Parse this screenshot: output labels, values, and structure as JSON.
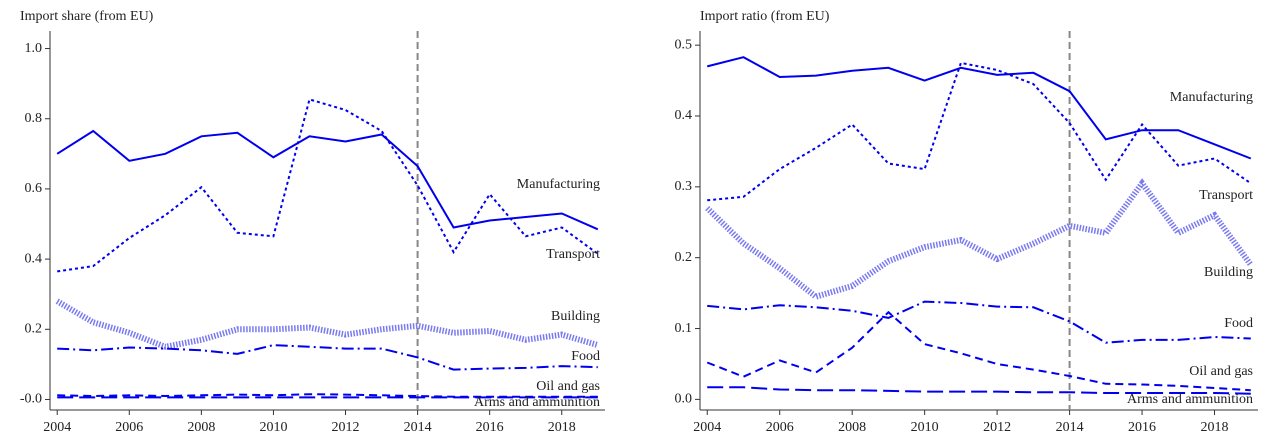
{
  "chart_data": [
    {
      "type": "line",
      "y_label": "Import share (from EU)",
      "x": [
        2004,
        2005,
        2006,
        2007,
        2008,
        2009,
        2010,
        2011,
        2012,
        2013,
        2014,
        2015,
        2016,
        2017,
        2018,
        2019
      ],
      "xlim": [
        2003.8,
        2019.2
      ],
      "xticks": [
        2004,
        2006,
        2008,
        2010,
        2012,
        2014,
        2016,
        2018
      ],
      "ylim": [
        -0.03,
        1.05
      ],
      "yticks": [
        {
          "value": 0,
          "label": "-0.0"
        },
        0.2,
        0.4,
        0.6,
        0.8,
        {
          "value": 1,
          "label": "1.0"
        }
      ],
      "vline": {
        "value": 2014,
        "color": "#888888"
      },
      "series": [
        {
          "name": "Manufacturing",
          "color": "#0000ee",
          "style": "solid",
          "width": 2,
          "values": [
            0.7,
            0.765,
            0.68,
            0.7,
            0.75,
            0.76,
            0.69,
            0.75,
            0.735,
            0.755,
            0.665,
            0.49,
            0.51,
            0.52,
            0.53,
            0.485
          ]
        },
        {
          "name": "Transport",
          "color": "#0000ee",
          "style": "dotted",
          "width": 2,
          "values": [
            0.365,
            0.38,
            0.46,
            0.525,
            0.605,
            0.475,
            0.465,
            0.855,
            0.825,
            0.765,
            0.61,
            0.42,
            0.585,
            0.465,
            0.49,
            0.415
          ]
        },
        {
          "name": "Building",
          "color": "#7a7af0",
          "style": "thick-dotted",
          "width": 6,
          "values": [
            0.28,
            0.22,
            0.19,
            0.15,
            0.17,
            0.2,
            0.2,
            0.205,
            0.185,
            0.2,
            0.21,
            0.19,
            0.195,
            0.17,
            0.185,
            0.155
          ]
        },
        {
          "name": "Food",
          "color": "#0000ee",
          "style": "dashdot",
          "width": 2,
          "values": [
            0.145,
            0.14,
            0.148,
            0.145,
            0.14,
            0.13,
            0.155,
            0.15,
            0.145,
            0.145,
            0.12,
            0.085,
            0.088,
            0.09,
            0.095,
            0.092
          ]
        },
        {
          "name": "Oil and gas",
          "color": "#0000ee",
          "style": "dashed",
          "width": 2,
          "values": [
            0.012,
            0.01,
            0.012,
            0.01,
            0.012,
            0.014,
            0.012,
            0.015,
            0.014,
            0.012,
            0.01,
            0.008,
            0.008,
            0.008,
            0.008,
            0.008
          ]
        },
        {
          "name": "Arms and ammunition",
          "color": "#0000ee",
          "style": "longdash",
          "width": 2,
          "values": [
            0.006,
            0.006,
            0.006,
            0.006,
            0.006,
            0.006,
            0.006,
            0.006,
            0.006,
            0.006,
            0.006,
            0.006,
            0.006,
            0.006,
            0.006,
            0.006
          ]
        }
      ]
    },
    {
      "type": "line",
      "y_label": "Import ratio (from EU)",
      "x": [
        2004,
        2005,
        2006,
        2007,
        2008,
        2009,
        2010,
        2011,
        2012,
        2013,
        2014,
        2015,
        2016,
        2017,
        2018,
        2019
      ],
      "xlim": [
        2003.8,
        2019.2
      ],
      "xticks": [
        2004,
        2006,
        2008,
        2010,
        2012,
        2014,
        2016,
        2018
      ],
      "ylim": [
        -0.015,
        0.52
      ],
      "yticks": [
        {
          "value": 0,
          "label": "0.0"
        },
        0.1,
        0.2,
        0.3,
        0.4,
        0.5
      ],
      "vline": {
        "value": 2014,
        "color": "#888888"
      },
      "series": [
        {
          "name": "Manufacturing",
          "color": "#0000ee",
          "style": "solid",
          "width": 2,
          "values": [
            0.47,
            0.483,
            0.455,
            0.457,
            0.464,
            0.468,
            0.45,
            0.468,
            0.458,
            0.461,
            0.435,
            0.367,
            0.38,
            0.38,
            0.36,
            0.34
          ]
        },
        {
          "name": "Transport",
          "color": "#0000ee",
          "style": "dotted",
          "width": 2,
          "values": [
            0.281,
            0.286,
            0.325,
            0.355,
            0.388,
            0.333,
            0.325,
            0.475,
            0.465,
            0.445,
            0.39,
            0.31,
            0.388,
            0.33,
            0.34,
            0.305
          ]
        },
        {
          "name": "Building",
          "color": "#7a7af0",
          "style": "thick-dotted",
          "width": 6,
          "values": [
            0.27,
            0.22,
            0.185,
            0.145,
            0.16,
            0.195,
            0.215,
            0.225,
            0.198,
            0.22,
            0.245,
            0.235,
            0.305,
            0.235,
            0.26,
            0.19
          ]
        },
        {
          "name": "Food",
          "color": "#0000ee",
          "style": "dashdot",
          "width": 2,
          "values": [
            0.132,
            0.127,
            0.133,
            0.13,
            0.125,
            0.115,
            0.138,
            0.136,
            0.131,
            0.13,
            0.11,
            0.08,
            0.084,
            0.084,
            0.088,
            0.086
          ]
        },
        {
          "name": "Oil and gas",
          "color": "#0000ee",
          "style": "dashed",
          "width": 2,
          "values": [
            0.052,
            0.032,
            0.055,
            0.038,
            0.073,
            0.123,
            0.078,
            0.065,
            0.05,
            0.042,
            0.033,
            0.022,
            0.021,
            0.019,
            0.016,
            0.013
          ]
        },
        {
          "name": "Arms and ammunition",
          "color": "#0000ee",
          "style": "longdash",
          "width": 2,
          "values": [
            0.017,
            0.017,
            0.014,
            0.013,
            0.013,
            0.012,
            0.011,
            0.011,
            0.011,
            0.01,
            0.01,
            0.009,
            0.009,
            0.009,
            0.009,
            0.008
          ]
        }
      ]
    }
  ]
}
